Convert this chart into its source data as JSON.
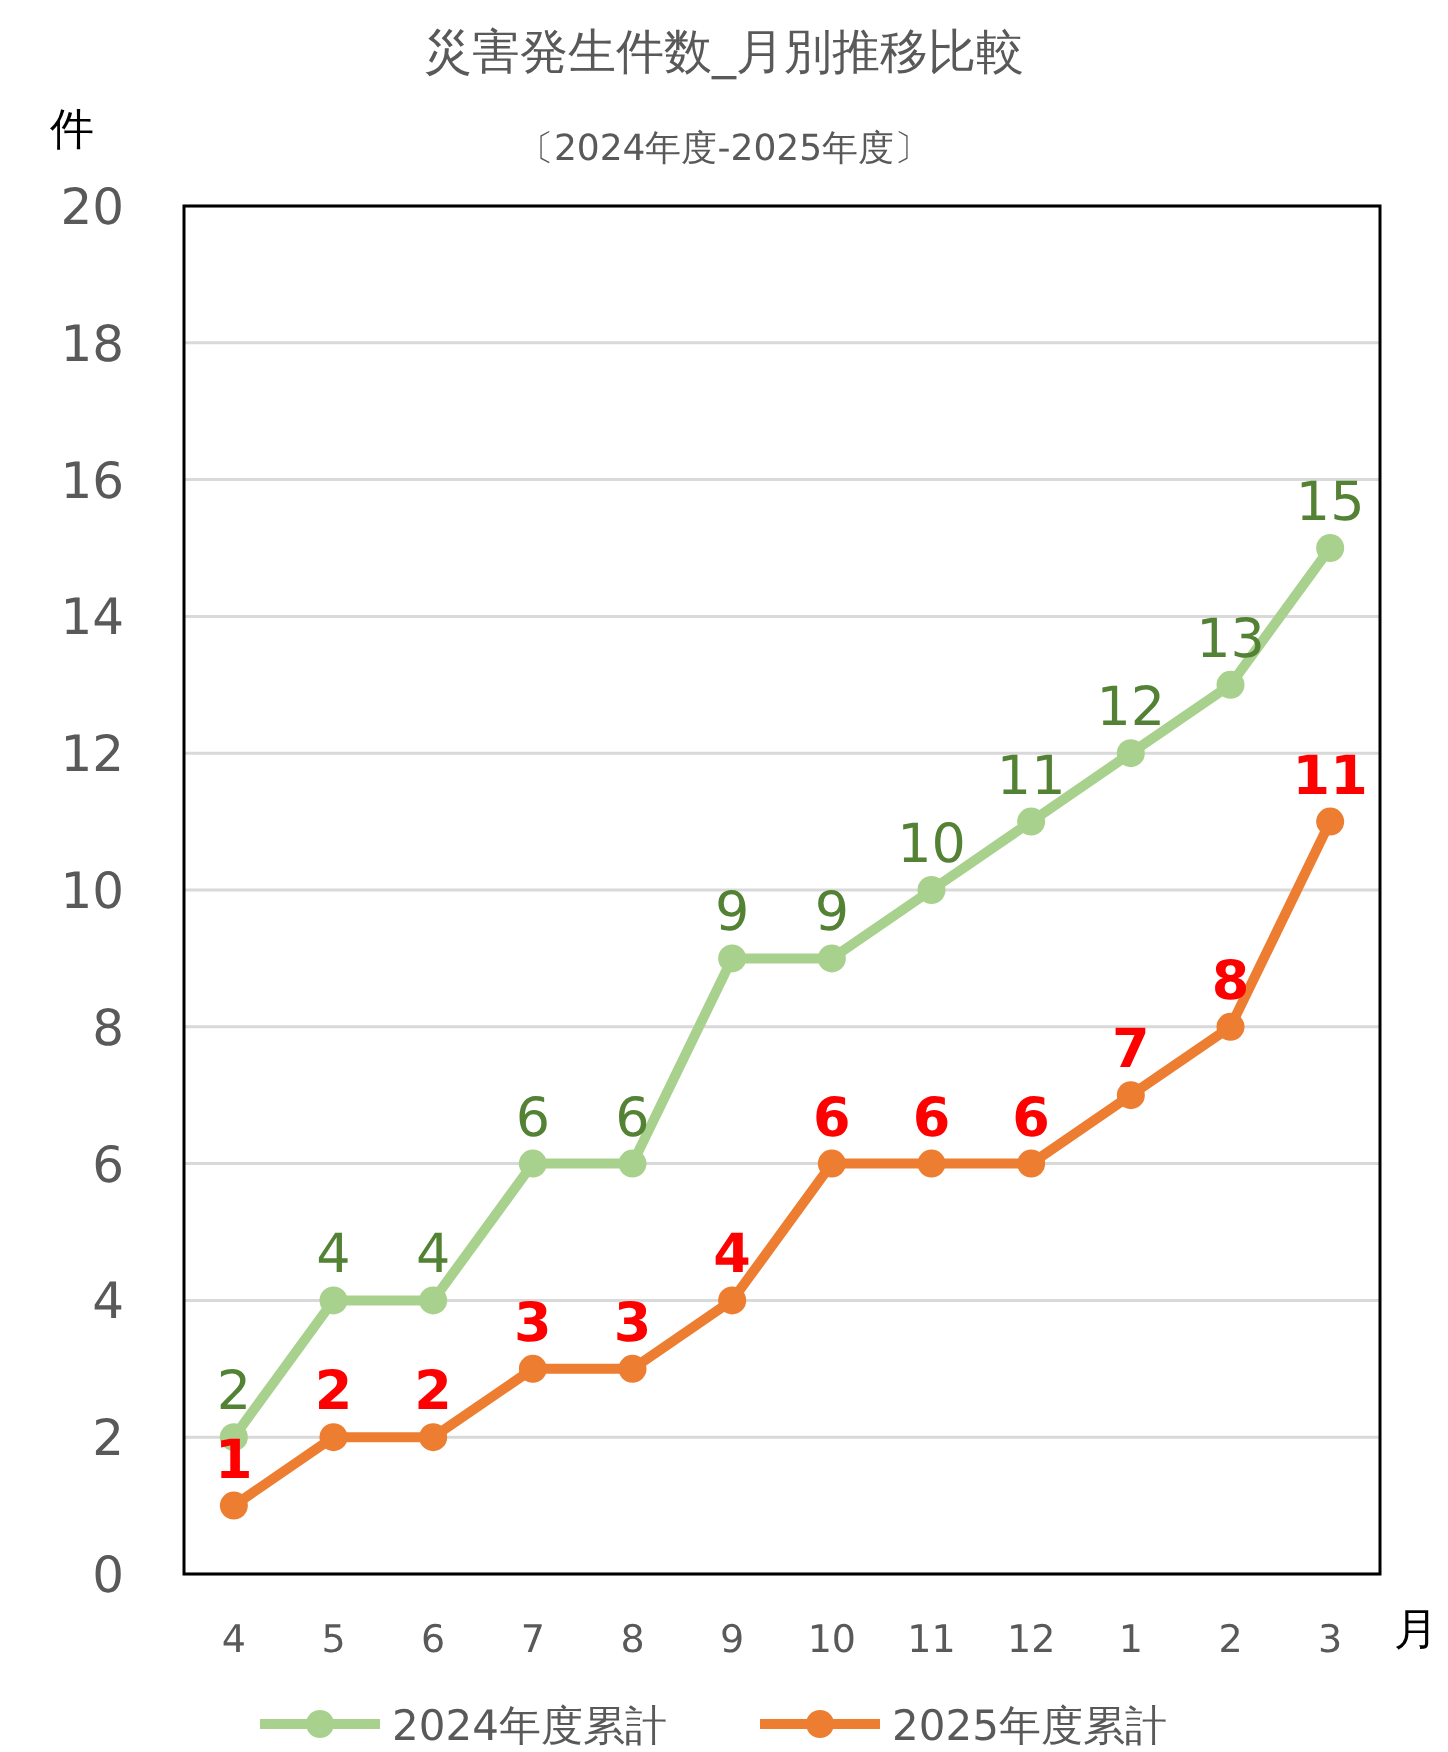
{
  "chart_data": {
    "type": "line",
    "title": "災害発生件数_月別推移比較",
    "subtitle": "〔2024年度-2025年度〕",
    "xlabel": "月",
    "ylabel": "件",
    "categories": [
      "4",
      "5",
      "6",
      "7",
      "8",
      "9",
      "10",
      "11",
      "12",
      "1",
      "2",
      "3"
    ],
    "series": [
      {
        "name": "2024年度累計",
        "color": "#a9d18e",
        "values": [
          2,
          4,
          4,
          6,
          6,
          9,
          9,
          10,
          11,
          12,
          13,
          15
        ]
      },
      {
        "name": "2025年度累計",
        "color": "#ed7d31",
        "values": [
          1,
          2,
          2,
          3,
          3,
          4,
          6,
          6,
          6,
          7,
          8,
          11
        ]
      }
    ],
    "ylim": [
      0,
      20
    ],
    "yticks": [
      0,
      2,
      4,
      6,
      8,
      10,
      12,
      14,
      16,
      18,
      20
    ],
    "grid": "y",
    "legend": "bottom",
    "marker": "circle",
    "line_style": "solid",
    "data_labels": true
  }
}
